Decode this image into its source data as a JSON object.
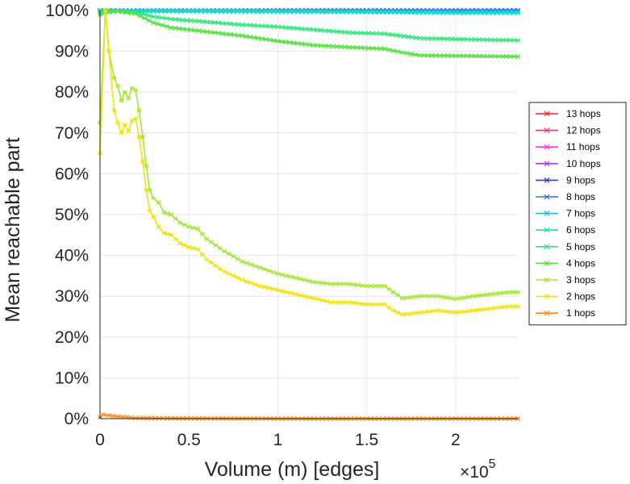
{
  "chart_data": {
    "type": "line",
    "xlabel": "Volume (m) [edges]",
    "ylabel": "Mean reachable part",
    "x_multiplier_base": "×10",
    "x_multiplier_exp": "5",
    "xlim": [
      0,
      235000
    ],
    "ylim": [
      0,
      100
    ],
    "x_ticks": [
      0,
      50000,
      100000,
      150000,
      200000
    ],
    "x_tick_labels": [
      "0",
      "0.5",
      "1",
      "1.5",
      "2"
    ],
    "y_ticks": [
      0,
      10,
      20,
      30,
      40,
      50,
      60,
      70,
      80,
      90,
      100
    ],
    "y_tick_labels": [
      "0%",
      "10%",
      "20%",
      "30%",
      "40%",
      "50%",
      "60%",
      "70%",
      "80%",
      "90%",
      "100%"
    ],
    "grid": true,
    "legend_position": "right",
    "series": [
      {
        "name": "13 hops",
        "color": "#ff1f1f",
        "x": [
          0,
          10000,
          50000,
          100000,
          150000,
          200000,
          235000
        ],
        "values": [
          100,
          100,
          100,
          100,
          100,
          100,
          100
        ]
      },
      {
        "name": "12 hops",
        "color": "#ff2a7f",
        "x": [
          0,
          10000,
          50000,
          100000,
          150000,
          200000,
          235000
        ],
        "values": [
          100,
          100,
          100,
          100,
          100,
          100,
          100
        ]
      },
      {
        "name": "11 hops",
        "color": "#ff33e8",
        "x": [
          0,
          10000,
          50000,
          100000,
          150000,
          200000,
          235000
        ],
        "values": [
          100,
          100,
          100,
          100,
          100,
          100,
          100
        ]
      },
      {
        "name": "10 hops",
        "color": "#a93cf0",
        "x": [
          0,
          10000,
          50000,
          100000,
          150000,
          200000,
          235000
        ],
        "values": [
          100,
          100,
          100,
          100,
          100,
          100,
          100
        ]
      },
      {
        "name": "9 hops",
        "color": "#3333e6",
        "x": [
          0,
          10000,
          50000,
          100000,
          150000,
          200000,
          235000
        ],
        "values": [
          100,
          100,
          100,
          100,
          100,
          100,
          100
        ]
      },
      {
        "name": "8 hops",
        "color": "#2f6fe6",
        "x": [
          0,
          10000,
          50000,
          100000,
          150000,
          200000,
          235000
        ],
        "values": [
          100,
          100,
          100,
          100,
          100,
          100,
          100
        ]
      },
      {
        "name": "7 hops",
        "color": "#19b8ea",
        "x": [
          0,
          10000,
          50000,
          100000,
          150000,
          200000,
          235000
        ],
        "values": [
          100,
          100,
          100,
          99.9,
          99.8,
          99.7,
          99.7
        ]
      },
      {
        "name": "6 hops",
        "color": "#14e0c8",
        "x": [
          0,
          10000,
          50000,
          100000,
          150000,
          200000,
          235000
        ],
        "values": [
          99.8,
          99.8,
          99.8,
          99.7,
          99.6,
          99.4,
          99.4
        ]
      },
      {
        "name": "5 hops",
        "color": "#2ee87a",
        "x": [
          0,
          5000,
          10000,
          20000,
          30000,
          40000,
          60000,
          80000,
          100000,
          120000,
          140000,
          160000,
          180000,
          200000,
          220000,
          235000
        ],
        "values": [
          99.5,
          99.8,
          99.9,
          99.5,
          98.5,
          97.9,
          97.2,
          96.5,
          96.0,
          95.3,
          94.6,
          94.3,
          93.2,
          93.0,
          92.8,
          92.7
        ]
      },
      {
        "name": "4 hops",
        "color": "#55e040",
        "x": [
          0,
          5000,
          10000,
          20000,
          30000,
          40000,
          60000,
          80000,
          100000,
          120000,
          140000,
          160000,
          170000,
          180000,
          200000,
          220000,
          235000
        ],
        "values": [
          99.0,
          99.6,
          99.8,
          99.2,
          97.0,
          95.8,
          94.8,
          93.8,
          92.5,
          91.5,
          91.0,
          90.6,
          89.7,
          89.0,
          88.9,
          88.8,
          88.7
        ]
      },
      {
        "name": "3 hops",
        "color": "#a6e636",
        "x": [
          0,
          3000,
          5000,
          8000,
          10000,
          12000,
          14000,
          16000,
          18000,
          20000,
          22000,
          24000,
          26000,
          28000,
          30000,
          33000,
          36000,
          40000,
          45000,
          50000,
          55000,
          60000,
          70000,
          80000,
          90000,
          100000,
          110000,
          120000,
          130000,
          140000,
          150000,
          160000,
          165000,
          170000,
          180000,
          190000,
          200000,
          210000,
          220000,
          230000,
          235000
        ],
        "values": [
          72.5,
          100,
          90,
          83.5,
          81.5,
          78,
          80,
          78.5,
          81,
          80.5,
          75.5,
          69,
          62,
          56,
          54,
          53,
          50.5,
          50,
          48,
          47,
          46.5,
          44,
          41,
          38.5,
          37,
          35.5,
          34.5,
          33.5,
          33,
          33,
          32.5,
          32.5,
          31,
          29.5,
          30,
          30,
          29.3,
          30,
          30.5,
          31,
          31
        ]
      },
      {
        "name": "2 hops",
        "color": "#f2e20e",
        "x": [
          0,
          3000,
          5000,
          8000,
          10000,
          12000,
          14000,
          16000,
          18000,
          20000,
          22000,
          24000,
          26000,
          28000,
          30000,
          33000,
          36000,
          40000,
          45000,
          50000,
          55000,
          60000,
          70000,
          80000,
          90000,
          100000,
          110000,
          120000,
          130000,
          140000,
          150000,
          160000,
          165000,
          170000,
          180000,
          190000,
          200000,
          210000,
          220000,
          230000,
          235000
        ],
        "values": [
          65,
          100,
          90,
          75.5,
          72.5,
          70,
          72,
          70.5,
          73,
          73.5,
          69,
          63,
          56,
          51,
          49.5,
          47,
          45.5,
          45,
          43,
          42,
          41.5,
          39,
          36,
          34,
          32.5,
          31.5,
          30.5,
          29.5,
          28.5,
          28.5,
          28,
          28,
          26.5,
          25.5,
          26,
          26.5,
          26,
          26.5,
          27,
          27.5,
          27.5
        ]
      },
      {
        "name": "1 hops",
        "color": "#ff8a1a",
        "x": [
          0,
          2000,
          5000,
          10000,
          20000,
          40000,
          60000,
          100000,
          150000,
          200000,
          235000
        ],
        "values": [
          0.3,
          1.0,
          0.8,
          0.5,
          0.2,
          0.1,
          0.05,
          0.02,
          0.01,
          0.01,
          0.01
        ]
      }
    ]
  }
}
